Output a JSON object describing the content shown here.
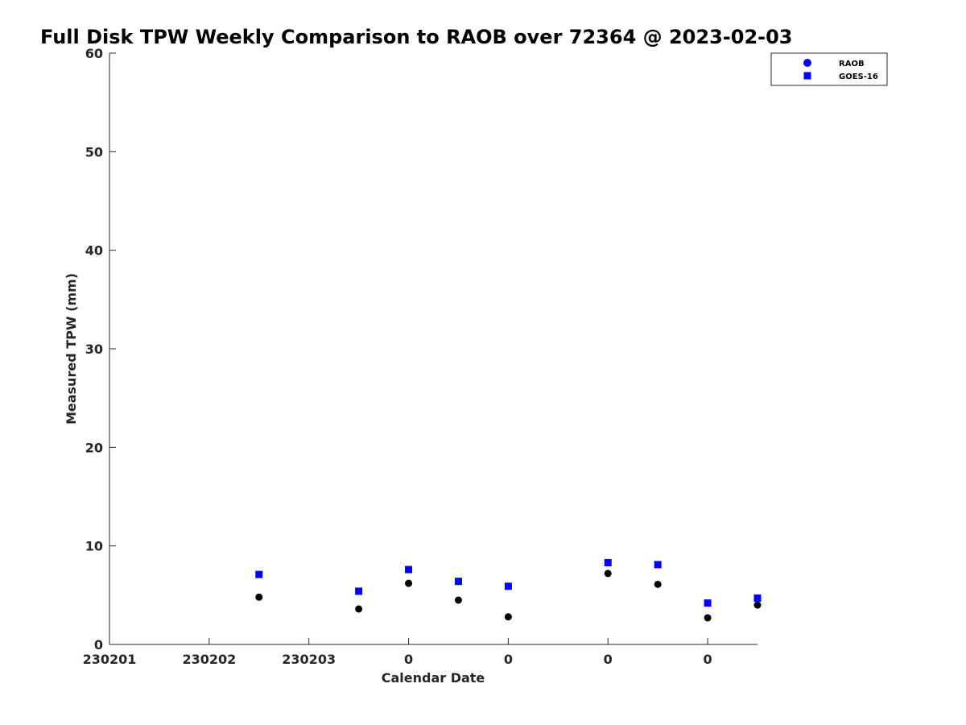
{
  "chart_data": {
    "type": "scatter",
    "title": "Full Disk TPW Weekly Comparison to RAOB over 72364 @ 2023-02-03",
    "xlabel": "Calendar Date",
    "ylabel": "Measured TPW (mm)",
    "ylim": [
      0,
      60
    ],
    "yticks": [
      0,
      10,
      20,
      30,
      40,
      50,
      60
    ],
    "xlim": [
      0,
      6.5
    ],
    "xticks": [
      0,
      1,
      2,
      3,
      4,
      5,
      6
    ],
    "xtick_labels": [
      "230201",
      "230202",
      "230203",
      "0",
      "0",
      "0",
      "0"
    ],
    "grid": false,
    "legend_position": "top-right",
    "series": [
      {
        "name": "RAOB",
        "marker": "circle",
        "color": "#000000",
        "legend_color": "#0000ff",
        "x": [
          1.5,
          2.5,
          3.0,
          3.5,
          4.0,
          5.0,
          5.5,
          6.0,
          6.5
        ],
        "y": [
          4.8,
          3.6,
          6.2,
          4.5,
          2.8,
          7.2,
          6.1,
          2.7,
          4.0
        ]
      },
      {
        "name": "GOES-16",
        "marker": "square",
        "color": "#0000ff",
        "legend_color": "#0000ff",
        "x": [
          1.5,
          2.5,
          3.0,
          3.5,
          4.0,
          5.0,
          5.5,
          6.0,
          6.5
        ],
        "y": [
          7.1,
          5.4,
          7.6,
          6.4,
          5.9,
          8.3,
          8.1,
          4.2,
          4.7
        ]
      }
    ]
  }
}
